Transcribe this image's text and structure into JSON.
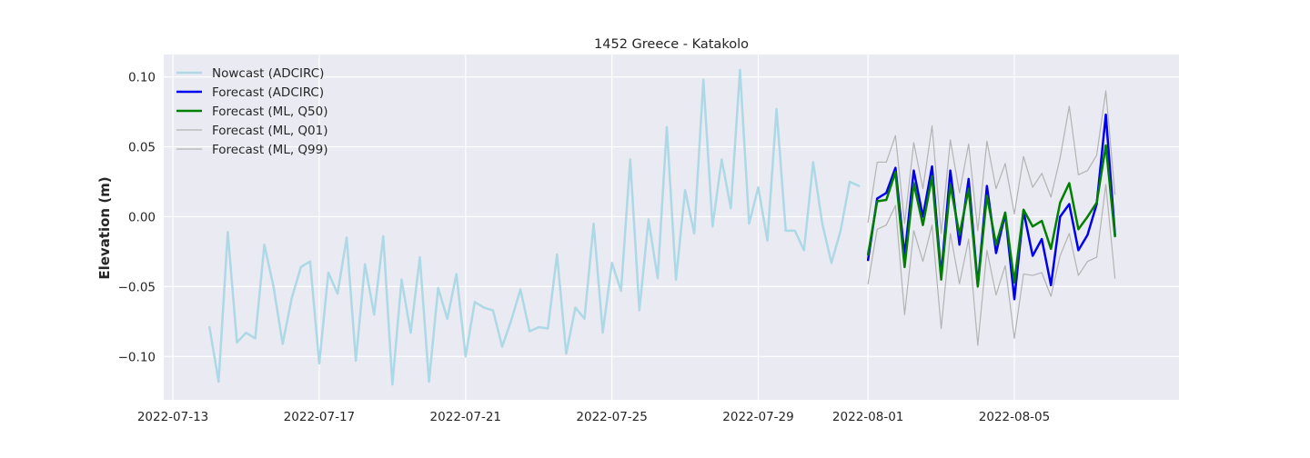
{
  "chart_data": {
    "type": "line",
    "title": "1452 Greece - Katakolo",
    "xlabel": "",
    "ylabel": "Elevation (m)",
    "x_axis_type": "date",
    "xlim": [
      "2022-07-12T18:00",
      "2022-08-09T12:00"
    ],
    "ylim": [
      -0.131,
      0.116
    ],
    "x_ticks": [
      "2022-07-13",
      "2022-07-17",
      "2022-07-21",
      "2022-07-25",
      "2022-07-29",
      "2022-08-01",
      "2022-08-05"
    ],
    "y_ticks": [
      -0.1,
      -0.05,
      0.0,
      0.05,
      0.1
    ],
    "y_tick_labels": [
      "−0.10",
      "−0.05",
      "0.00",
      "0.05",
      "0.10"
    ],
    "grid": true,
    "legend_placement": "top-left",
    "series": [
      {
        "name": "Nowcast (ADCIRC)",
        "color": "#add8e6",
        "line_width": 2.5,
        "x": [
          "2022-07-14T00:00",
          "2022-07-14T06:00",
          "2022-07-14T12:00",
          "2022-07-14T18:00",
          "2022-07-15T00:00",
          "2022-07-15T06:00",
          "2022-07-15T12:00",
          "2022-07-15T18:00",
          "2022-07-16T00:00",
          "2022-07-16T06:00",
          "2022-07-16T12:00",
          "2022-07-16T18:00",
          "2022-07-17T00:00",
          "2022-07-17T06:00",
          "2022-07-17T12:00",
          "2022-07-17T18:00",
          "2022-07-18T00:00",
          "2022-07-18T06:00",
          "2022-07-18T12:00",
          "2022-07-18T18:00",
          "2022-07-19T00:00",
          "2022-07-19T06:00",
          "2022-07-19T12:00",
          "2022-07-19T18:00",
          "2022-07-20T00:00",
          "2022-07-20T06:00",
          "2022-07-20T12:00",
          "2022-07-20T18:00",
          "2022-07-21T00:00",
          "2022-07-21T06:00",
          "2022-07-21T12:00",
          "2022-07-21T18:00",
          "2022-07-22T00:00",
          "2022-07-22T06:00",
          "2022-07-22T12:00",
          "2022-07-22T18:00",
          "2022-07-23T00:00",
          "2022-07-23T06:00",
          "2022-07-23T12:00",
          "2022-07-23T18:00",
          "2022-07-24T00:00",
          "2022-07-24T06:00",
          "2022-07-24T12:00",
          "2022-07-24T18:00",
          "2022-07-25T00:00",
          "2022-07-25T06:00",
          "2022-07-25T12:00",
          "2022-07-25T18:00",
          "2022-07-26T00:00",
          "2022-07-26T06:00",
          "2022-07-26T12:00",
          "2022-07-26T18:00",
          "2022-07-27T00:00",
          "2022-07-27T06:00",
          "2022-07-27T12:00",
          "2022-07-27T18:00",
          "2022-07-28T00:00",
          "2022-07-28T06:00",
          "2022-07-28T12:00",
          "2022-07-28T18:00",
          "2022-07-29T00:00",
          "2022-07-29T06:00",
          "2022-07-29T12:00",
          "2022-07-29T18:00",
          "2022-07-30T00:00",
          "2022-07-30T06:00",
          "2022-07-30T12:00",
          "2022-07-30T18:00",
          "2022-07-31T00:00",
          "2022-07-31T06:00",
          "2022-07-31T12:00",
          "2022-07-31T18:00"
        ],
        "values": [
          -0.079,
          -0.118,
          -0.011,
          -0.09,
          -0.083,
          -0.087,
          -0.02,
          -0.05,
          -0.091,
          -0.058,
          -0.036,
          -0.032,
          -0.105,
          -0.04,
          -0.055,
          -0.015,
          -0.103,
          -0.034,
          -0.07,
          -0.014,
          -0.12,
          -0.045,
          -0.083,
          -0.029,
          -0.118,
          -0.051,
          -0.073,
          -0.041,
          -0.1,
          -0.061,
          -0.065,
          -0.067,
          -0.093,
          -0.074,
          -0.052,
          -0.082,
          -0.079,
          -0.08,
          -0.027,
          -0.098,
          -0.065,
          -0.073,
          -0.005,
          -0.083,
          -0.033,
          -0.053,
          0.041,
          -0.067,
          -0.002,
          -0.044,
          0.064,
          -0.045,
          0.019,
          -0.012,
          0.098,
          -0.007,
          0.041,
          0.006,
          0.105,
          -0.005,
          0.021,
          -0.017,
          0.077,
          -0.01,
          -0.01,
          -0.024,
          0.039,
          -0.005,
          -0.033,
          -0.01,
          0.025,
          0.022
        ]
      },
      {
        "name": "Forecast (ADCIRC)",
        "color": "#0000ee",
        "line_width": 2.5,
        "x": [
          "2022-08-01T00:00",
          "2022-08-01T06:00",
          "2022-08-01T12:00",
          "2022-08-01T18:00",
          "2022-08-02T00:00",
          "2022-08-02T06:00",
          "2022-08-02T12:00",
          "2022-08-02T18:00",
          "2022-08-03T00:00",
          "2022-08-03T06:00",
          "2022-08-03T12:00",
          "2022-08-03T18:00",
          "2022-08-04T00:00",
          "2022-08-04T06:00",
          "2022-08-04T12:00",
          "2022-08-04T18:00",
          "2022-08-05T00:00",
          "2022-08-05T06:00",
          "2022-08-05T12:00",
          "2022-08-05T18:00",
          "2022-08-06T00:00",
          "2022-08-06T06:00",
          "2022-08-06T12:00",
          "2022-08-06T18:00",
          "2022-08-07T00:00",
          "2022-08-07T06:00",
          "2022-08-07T12:00",
          "2022-08-07T18:00"
        ],
        "values": [
          -0.031,
          0.013,
          0.017,
          0.035,
          -0.028,
          0.033,
          0.0,
          0.036,
          -0.042,
          0.033,
          -0.02,
          0.027,
          -0.049,
          0.022,
          -0.026,
          0.002,
          -0.059,
          0.004,
          -0.028,
          -0.016,
          -0.049,
          0.0,
          0.009,
          -0.024,
          -0.013,
          0.009,
          0.073,
          -0.013
        ]
      },
      {
        "name": "Forecast (ML, Q50)",
        "color": "#008000",
        "line_width": 2.5,
        "x": [
          "2022-08-01T00:00",
          "2022-08-01T06:00",
          "2022-08-01T12:00",
          "2022-08-01T18:00",
          "2022-08-02T00:00",
          "2022-08-02T06:00",
          "2022-08-02T12:00",
          "2022-08-02T18:00",
          "2022-08-03T00:00",
          "2022-08-03T06:00",
          "2022-08-03T12:00",
          "2022-08-03T18:00",
          "2022-08-04T00:00",
          "2022-08-04T06:00",
          "2022-08-04T12:00",
          "2022-08-04T18:00",
          "2022-08-05T00:00",
          "2022-08-05T06:00",
          "2022-08-05T12:00",
          "2022-08-05T18:00",
          "2022-08-06T00:00",
          "2022-08-06T06:00",
          "2022-08-06T12:00",
          "2022-08-06T18:00",
          "2022-08-07T00:00",
          "2022-08-07T06:00",
          "2022-08-07T12:00",
          "2022-08-07T18:00"
        ],
        "values": [
          -0.027,
          0.011,
          0.012,
          0.032,
          -0.036,
          0.024,
          -0.006,
          0.029,
          -0.045,
          0.023,
          -0.013,
          0.02,
          -0.05,
          0.015,
          -0.02,
          0.003,
          -0.047,
          0.005,
          -0.007,
          -0.003,
          -0.023,
          0.01,
          0.024,
          -0.009,
          0.0,
          0.01,
          0.051,
          -0.014
        ]
      },
      {
        "name": "Forecast (ML, Q01)",
        "color": "#b3b3b3",
        "line_width": 1.2,
        "x": [
          "2022-08-01T00:00",
          "2022-08-01T06:00",
          "2022-08-01T12:00",
          "2022-08-01T18:00",
          "2022-08-02T00:00",
          "2022-08-02T06:00",
          "2022-08-02T12:00",
          "2022-08-02T18:00",
          "2022-08-03T00:00",
          "2022-08-03T06:00",
          "2022-08-03T12:00",
          "2022-08-03T18:00",
          "2022-08-04T00:00",
          "2022-08-04T06:00",
          "2022-08-04T12:00",
          "2022-08-04T18:00",
          "2022-08-05T00:00",
          "2022-08-05T06:00",
          "2022-08-05T12:00",
          "2022-08-05T18:00",
          "2022-08-06T00:00",
          "2022-08-06T06:00",
          "2022-08-06T12:00",
          "2022-08-06T18:00",
          "2022-08-07T00:00",
          "2022-08-07T06:00",
          "2022-08-07T12:00",
          "2022-08-07T18:00"
        ],
        "values": [
          -0.048,
          -0.009,
          -0.006,
          0.008,
          -0.07,
          -0.01,
          -0.032,
          -0.006,
          -0.08,
          -0.012,
          -0.048,
          -0.016,
          -0.092,
          -0.024,
          -0.056,
          -0.035,
          -0.087,
          -0.041,
          -0.042,
          -0.04,
          -0.057,
          -0.028,
          -0.012,
          -0.042,
          -0.032,
          -0.029,
          0.023,
          -0.044
        ]
      },
      {
        "name": "Forecast (ML, Q99)",
        "color": "#b3b3b3",
        "line_width": 1.2,
        "x": [
          "2022-08-01T00:00",
          "2022-08-01T06:00",
          "2022-08-01T12:00",
          "2022-08-01T18:00",
          "2022-08-02T00:00",
          "2022-08-02T06:00",
          "2022-08-02T12:00",
          "2022-08-02T18:00",
          "2022-08-03T00:00",
          "2022-08-03T06:00",
          "2022-08-03T12:00",
          "2022-08-03T18:00",
          "2022-08-04T00:00",
          "2022-08-04T06:00",
          "2022-08-04T12:00",
          "2022-08-04T18:00",
          "2022-08-05T00:00",
          "2022-08-05T06:00",
          "2022-08-05T12:00",
          "2022-08-05T18:00",
          "2022-08-06T00:00",
          "2022-08-06T06:00",
          "2022-08-06T12:00",
          "2022-08-06T18:00",
          "2022-08-07T00:00",
          "2022-08-07T06:00",
          "2022-08-07T12:00",
          "2022-08-07T18:00"
        ],
        "values": [
          -0.004,
          0.039,
          0.039,
          0.058,
          -0.005,
          0.053,
          0.02,
          0.065,
          -0.012,
          0.055,
          0.017,
          0.052,
          -0.01,
          0.054,
          0.02,
          0.038,
          0.002,
          0.043,
          0.021,
          0.031,
          0.014,
          0.042,
          0.079,
          0.03,
          0.033,
          0.044,
          0.09,
          0.016
        ]
      }
    ]
  }
}
